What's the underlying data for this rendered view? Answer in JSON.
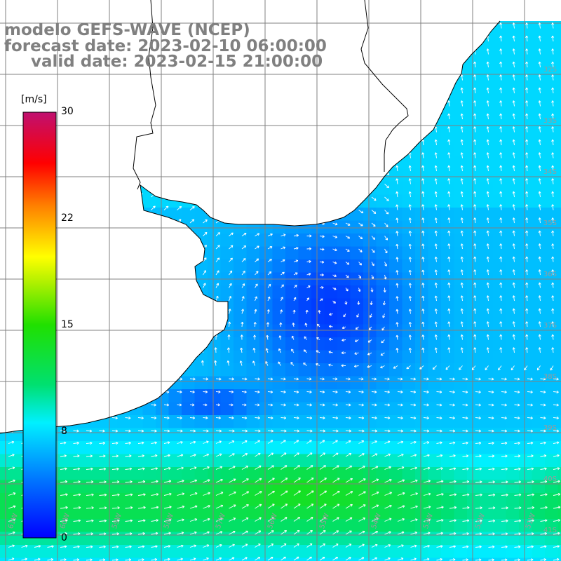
{
  "title": {
    "line1": "modelo GEFS-WAVE (NCEP)",
    "line2": "forecast date: 2023-02-10 06:00:00",
    "line3": "valid date: 2023-02-15 21:00:00"
  },
  "colorbar": {
    "unit": "[m/s]",
    "ticks": [
      "30",
      "22",
      "15",
      "8",
      "0"
    ],
    "tick_values": [
      30,
      22,
      15,
      8,
      0
    ],
    "range": [
      0,
      30
    ],
    "colors": [
      "#0010ff",
      "#0080ff",
      "#00e8ff",
      "#00d060",
      "#00ff00",
      "#b0ff00",
      "#ffff00",
      "#ff8000",
      "#ff0000",
      "#c01070"
    ]
  },
  "lat_labels": [
    "32S",
    "33S",
    "34S",
    "35S",
    "36S",
    "37S",
    "38S",
    "39S",
    "40S",
    "41S"
  ],
  "lon_labels": [
    "61W",
    "60W",
    "59W",
    "58W",
    "57W",
    "56W",
    "55W",
    "54W",
    "53W",
    "52W",
    "51W"
  ],
  "map": {
    "variable": "wind speed",
    "land_color": "#ffffff",
    "coast_color": "#000000",
    "grid_color": "#808080",
    "arrow_color": "#ffffff"
  }
}
